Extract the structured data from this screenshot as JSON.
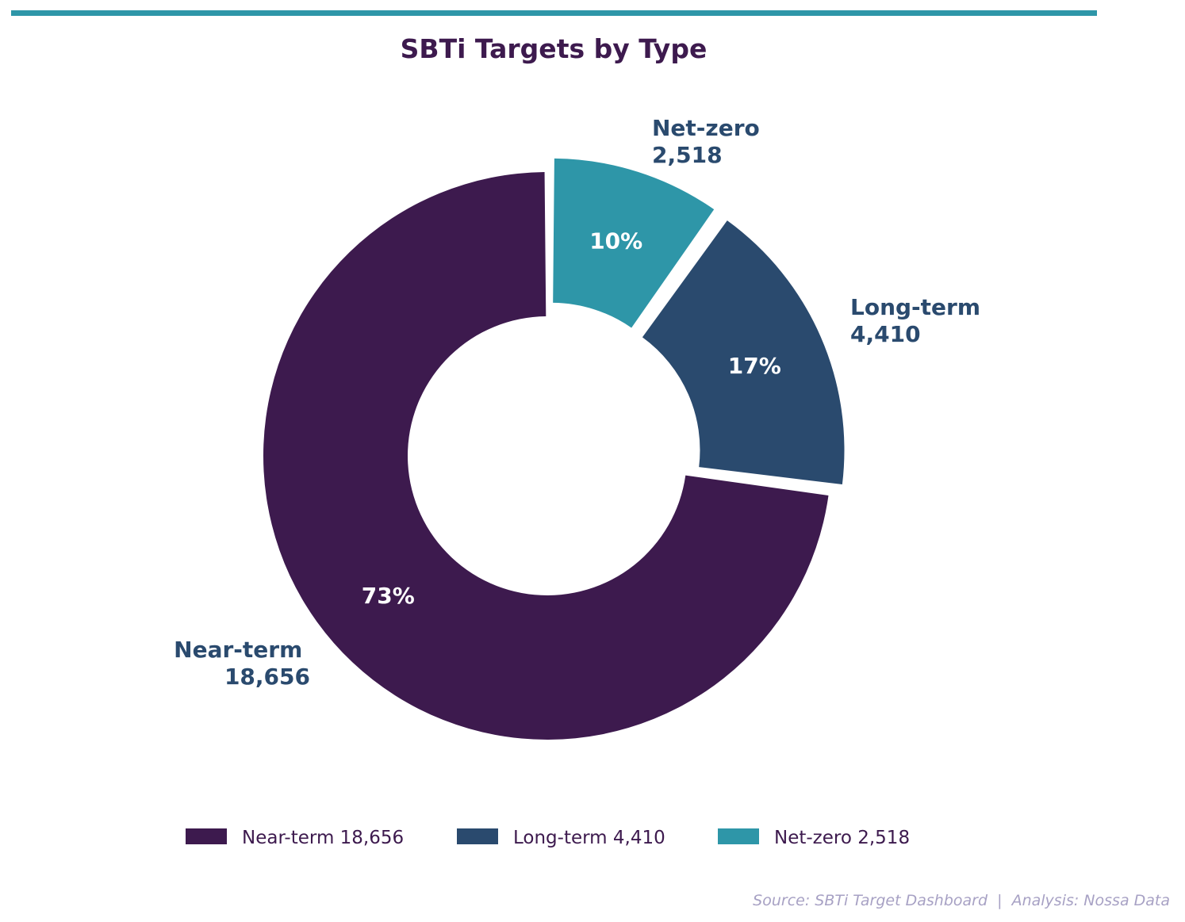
{
  "chart_data": {
    "type": "pie",
    "variant": "donut",
    "title": "SBTi Targets by Type",
    "categories": [
      "Near-term",
      "Long-term",
      "Net-zero"
    ],
    "values": [
      18656,
      4410,
      2518
    ],
    "value_labels": [
      "18,656",
      "4,410",
      "2,518"
    ],
    "percent_labels": [
      "73%",
      "17%",
      "10%"
    ],
    "colors": [
      "#3d1a4e",
      "#2a4a6e",
      "#2e96a8"
    ],
    "exploded": [
      false,
      true,
      true
    ],
    "legend": {
      "placement": "bottom",
      "entries": [
        "Near-term 18,656",
        "Long-term 4,410",
        "Net-zero 2,518"
      ]
    },
    "source": "Source: SBTi Target Dashboard  |  Analysis: Nossa Data"
  },
  "theme": {
    "accent_bar_color": "#2e96a8",
    "title_color": "#3d1a4e",
    "label_color": "#2a4a6e",
    "source_color": "#a7a1c4"
  }
}
